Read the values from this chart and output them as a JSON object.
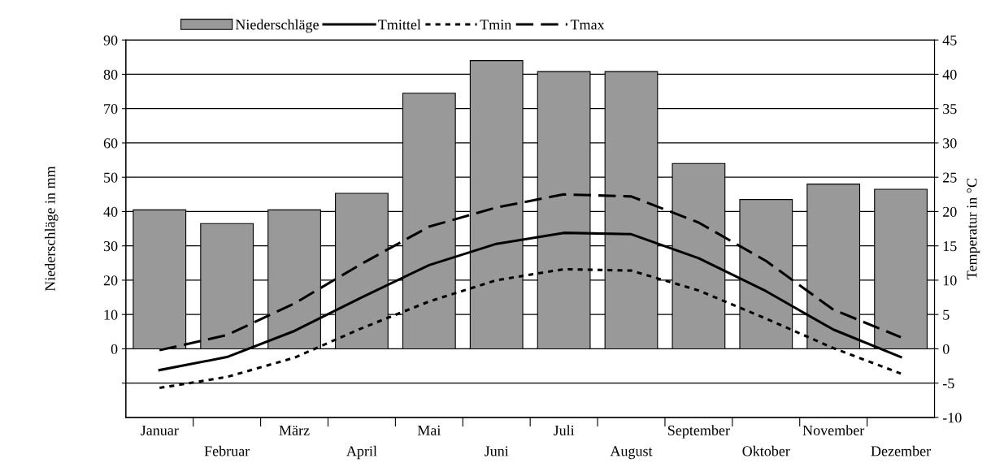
{
  "chart_data": {
    "type": "bar",
    "categories": [
      "Januar",
      "Februar",
      "März",
      "April",
      "Mai",
      "Juni",
      "Juli",
      "August",
      "September",
      "Oktober",
      "November",
      "Dezember"
    ],
    "series": [
      {
        "name": "Niederschläge",
        "color": "#999999",
        "values": [
          40.5,
          36.5,
          40.5,
          45.3,
          74.5,
          84,
          80.8,
          80.8,
          54,
          43.5,
          48,
          46.5
        ]
      },
      {
        "name": "Tmittel",
        "type": "line",
        "axis": "y2",
        "color": "#000000",
        "line_style": "solid",
        "values": [
          -3.1,
          -1.2,
          2.6,
          7.5,
          12.2,
          15.3,
          16.9,
          16.7,
          13.2,
          8.4,
          2.8,
          -1.2
        ]
      },
      {
        "name": "Tmin",
        "type": "line",
        "axis": "y2",
        "color": "#000000",
        "line_style": "dotted",
        "values": [
          -5.7,
          -4.1,
          -1.3,
          3.0,
          6.9,
          10.0,
          11.6,
          11.4,
          8.5,
          4.4,
          0.1,
          -3.6
        ]
      },
      {
        "name": "Tmax",
        "type": "line",
        "axis": "y2",
        "color": "#000000",
        "line_style": "dashed",
        "values": [
          -0.2,
          2.0,
          6.6,
          12.4,
          17.8,
          20.6,
          22.5,
          22.2,
          18.4,
          12.8,
          5.7,
          1.7
        ]
      }
    ],
    "ylabel": "Niederschläge in mm",
    "y2label": "Temperatur in °C",
    "ylim": [
      -20,
      90
    ],
    "yticks": [
      {
        "value": -10,
        "label": null
      },
      0,
      10,
      20,
      30,
      40,
      50,
      60,
      70,
      80,
      90
    ],
    "y2lim": [
      -10,
      45
    ],
    "y2ticks": [
      -10,
      -5,
      0,
      5,
      10,
      15,
      20,
      25,
      30,
      35,
      40,
      45
    ],
    "grid": "y",
    "legend": "top",
    "marker": "none"
  }
}
